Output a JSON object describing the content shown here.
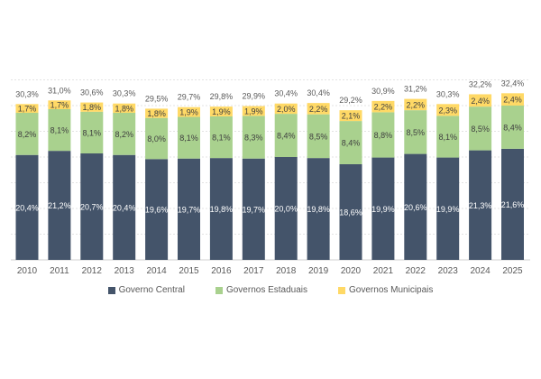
{
  "chart_data": {
    "type": "bar",
    "stacked": true,
    "title": "",
    "xlabel": "",
    "ylabel": "",
    "ylim": [
      0,
      35
    ],
    "grid": true,
    "legend_position": "bottom",
    "categories": [
      "2010",
      "2011",
      "2012",
      "2013",
      "2014",
      "2015",
      "2016",
      "2017",
      "2018",
      "2019",
      "2020",
      "2021",
      "2022",
      "2023",
      "2024",
      "2025"
    ],
    "series": [
      {
        "name": "Governo Central",
        "color": "#44546a",
        "values": [
          20.4,
          21.2,
          20.7,
          20.4,
          19.6,
          19.7,
          19.8,
          19.7,
          20.0,
          19.8,
          18.6,
          19.9,
          20.6,
          19.9,
          21.3,
          21.6
        ],
        "labels": [
          "20,4%",
          "21,2%",
          "20,7%",
          "20,4%",
          "19,6%",
          "19,7%",
          "19,8%",
          "19,7%",
          "20,0%",
          "19,8%",
          "18,6%",
          "19,9%",
          "20,6%",
          "19,9%",
          "21,3%",
          "21,6%"
        ]
      },
      {
        "name": "Governos Estaduais",
        "color": "#a9d18e",
        "values": [
          8.2,
          8.1,
          8.1,
          8.2,
          8.0,
          8.1,
          8.1,
          8.3,
          8.4,
          8.5,
          8.4,
          8.8,
          8.5,
          8.1,
          8.5,
          8.4
        ],
        "labels": [
          "8,2%",
          "8,1%",
          "8,1%",
          "8,2%",
          "8,0%",
          "8,1%",
          "8,1%",
          "8,3%",
          "8,4%",
          "8,5%",
          "8,4%",
          "8,8%",
          "8,5%",
          "8,1%",
          "8,5%",
          "8,4%"
        ]
      },
      {
        "name": "Governos Municipais",
        "color": "#ffd966",
        "values": [
          1.7,
          1.7,
          1.8,
          1.8,
          1.8,
          1.9,
          1.9,
          1.9,
          2.0,
          2.2,
          2.1,
          2.2,
          2.2,
          2.3,
          2.4,
          2.4
        ],
        "labels": [
          "1,7%",
          "1,7%",
          "1,8%",
          "1,8%",
          "1,8%",
          "1,9%",
          "1,9%",
          "1,9%",
          "2,0%",
          "2,2%",
          "2,1%",
          "2,2%",
          "2,2%",
          "2,3%",
          "2,4%",
          "2,4%"
        ]
      }
    ],
    "totals": [
      30.3,
      31.0,
      30.6,
      30.3,
      29.5,
      29.7,
      29.8,
      29.9,
      30.4,
      30.4,
      29.2,
      30.9,
      31.2,
      30.3,
      32.2,
      32.4
    ],
    "total_labels": [
      "30,3%",
      "31,0%",
      "30,6%",
      "30,3%",
      "29,5%",
      "29,7%",
      "29,8%",
      "29,9%",
      "30,4%",
      "30,4%",
      "29,2%",
      "30,9%",
      "31,2%",
      "30,3%",
      "32,2%",
      "32,4%"
    ]
  }
}
